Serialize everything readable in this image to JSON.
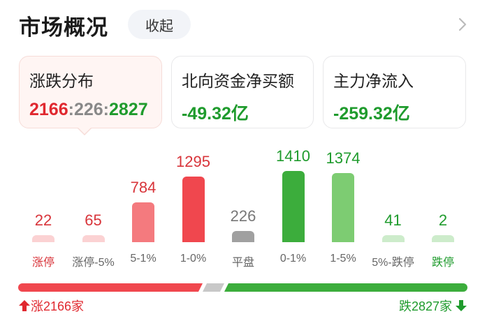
{
  "header": {
    "title": "市场概况",
    "collapse_label": "收起"
  },
  "cards": [
    {
      "label": "涨跌分布",
      "up": "2166",
      "flat": "226",
      "down": "2827",
      "sep": ":"
    },
    {
      "label": "北向资金净买额",
      "value": "-49.32亿"
    },
    {
      "label": "主力净流入",
      "value": "-259.32亿"
    }
  ],
  "distribution": {
    "buckets": [
      {
        "label": "涨停",
        "value": 22,
        "tone": "red-light"
      },
      {
        "label": "涨停-5%",
        "value": 65,
        "tone": "red-light"
      },
      {
        "label": "5-1%",
        "value": 784,
        "tone": "red-mid"
      },
      {
        "label": "1-0%",
        "value": 1295,
        "tone": "red"
      },
      {
        "label": "平盘",
        "value": 226,
        "tone": "gray"
      },
      {
        "label": "0-1%",
        "value": 1410,
        "tone": "green"
      },
      {
        "label": "1-5%",
        "value": 1374,
        "tone": "green-mid"
      },
      {
        "label": "5%-跌停",
        "value": 41,
        "tone": "green-light"
      },
      {
        "label": "跌停",
        "value": 2,
        "tone": "green-light"
      }
    ]
  },
  "summary": {
    "up_label": "涨2166家",
    "down_label": "跌2827家",
    "up_count": 2166,
    "flat_count": 226,
    "down_count": 2827
  },
  "colors": {
    "red": "#f0474e",
    "red_mid": "#f47a7e",
    "red_light": "#fbd2d3",
    "green": "#3cad3c",
    "green_mid": "#7dcc72",
    "green_light": "#cdeccb",
    "gray": "#a0a0a0"
  }
}
